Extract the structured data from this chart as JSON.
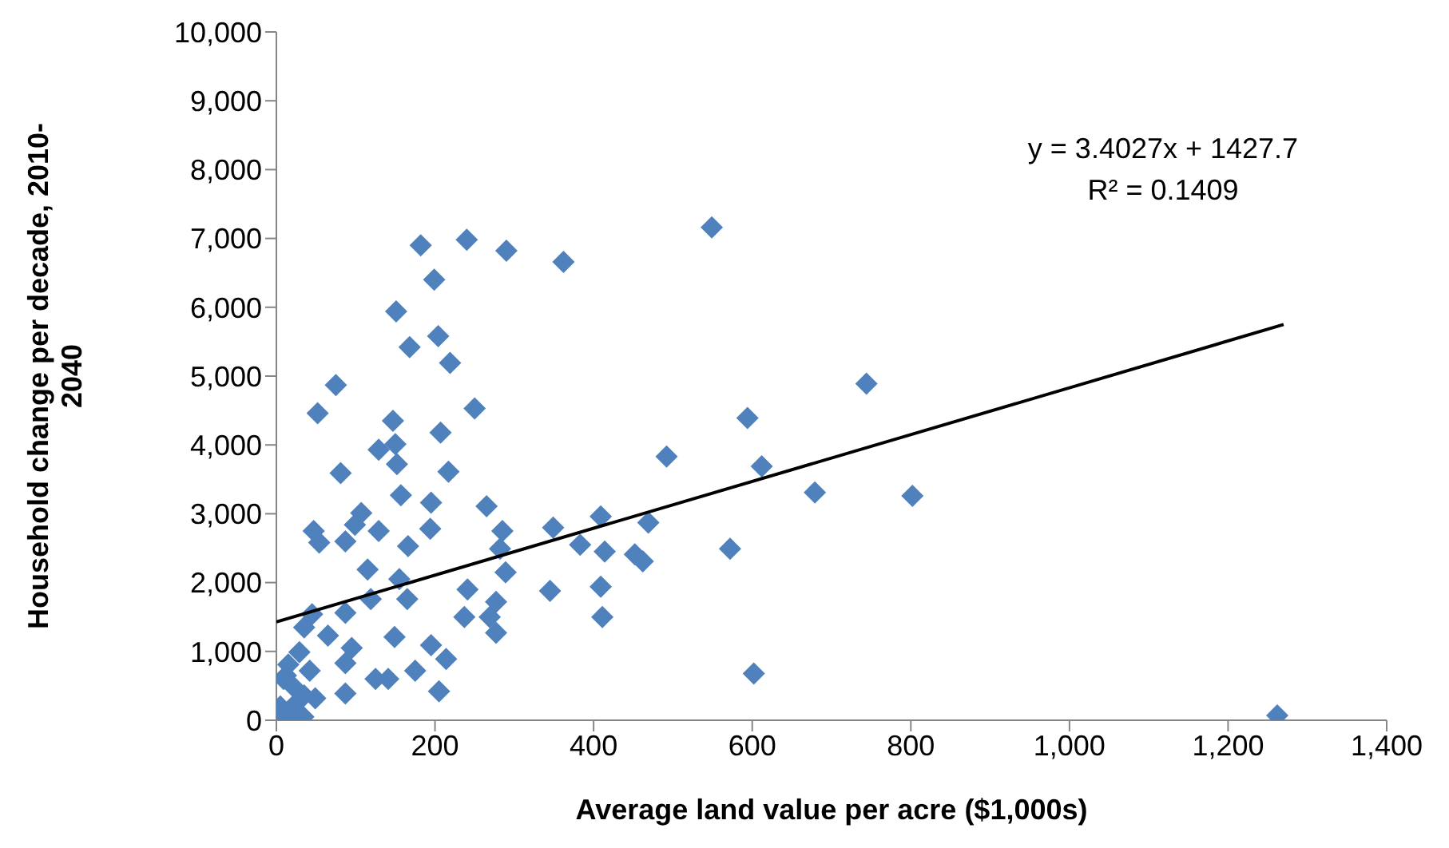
{
  "chart_data": {
    "type": "scatter",
    "xlabel": "Average land value per acre ($1,000s)",
    "ylabel": "Household change per decade, 2010-2040",
    "xlim": [
      0,
      1400
    ],
    "xticks": [
      0,
      200,
      400,
      600,
      800,
      {
        "value": 1000,
        "label": "1,000"
      },
      {
        "value": 1200,
        "label": "1,200"
      },
      {
        "value": 1400,
        "label": "1,400"
      }
    ],
    "ylim": [
      0,
      10000
    ],
    "yticks": [
      0,
      {
        "value": 1000,
        "label": "1,000"
      },
      {
        "value": 2000,
        "label": "2,000"
      },
      {
        "value": 3000,
        "label": "3,000"
      },
      {
        "value": 4000,
        "label": "4,000"
      },
      {
        "value": 5000,
        "label": "5,000"
      },
      {
        "value": 6000,
        "label": "6,000"
      },
      {
        "value": 7000,
        "label": "7,000"
      },
      {
        "value": 8000,
        "label": "8,000"
      },
      {
        "value": 9000,
        "label": "9,000"
      },
      {
        "value": 10000,
        "label": "10,000"
      }
    ],
    "marker": "diamond",
    "annotations": [
      "y = 3.4027x + 1427.7",
      "R² = 0.1409"
    ],
    "series": [
      {
        "color": "#4f81bd",
        "x": [
          182,
          240,
          290,
          362,
          199,
          151,
          204,
          168,
          219,
          75,
          52,
          250,
          147,
          207,
          129,
          150,
          152,
          81,
          217,
          157,
          265,
          195,
          107,
          99,
          129,
          47,
          54,
          87,
          194,
          285,
          282,
          166,
          349,
          383,
          409,
          414,
          289,
          115,
          155,
          165,
          119,
          87,
          241,
          277,
          345,
          409,
          411,
          237,
          269,
          277,
          45,
          35,
          65,
          95,
          149,
          195,
          214,
          175,
          125,
          141,
          205,
          87,
          87,
          29,
          15,
          42,
          9,
          35,
          5,
          9,
          34,
          22,
          49,
          549,
          744,
          594,
          492,
          612,
          679,
          802,
          469,
          572,
          452,
          462,
          602,
          1262,
          18,
          25,
          12
        ],
        "values": [
          6900,
          6980,
          6820,
          6660,
          6400,
          5940,
          5580,
          5420,
          5190,
          4870,
          4460,
          4530,
          4350,
          4180,
          3930,
          4010,
          3720,
          3590,
          3610,
          3270,
          3110,
          3160,
          3010,
          2840,
          2750,
          2750,
          2580,
          2600,
          2780,
          2750,
          2490,
          2530,
          2800,
          2550,
          2960,
          2450,
          2150,
          2190,
          2050,
          1760,
          1760,
          1560,
          1900,
          1720,
          1880,
          1940,
          1500,
          1500,
          1500,
          1270,
          1540,
          1350,
          1230,
          1050,
          1210,
          1090,
          890,
          720,
          600,
          600,
          420,
          390,
          830,
          990,
          810,
          720,
          600,
          360,
          200,
          50,
          50,
          480,
          320,
          7160,
          4890,
          4390,
          3830,
          3690,
          3310,
          3260,
          2870,
          2490,
          2410,
          2310,
          680,
          70,
          100,
          250,
          650
        ]
      },
      {
        "type": "line",
        "marker": "none",
        "color": "#000000",
        "x": [
          0,
          1270
        ],
        "values": [
          1428,
          5749
        ]
      }
    ]
  }
}
